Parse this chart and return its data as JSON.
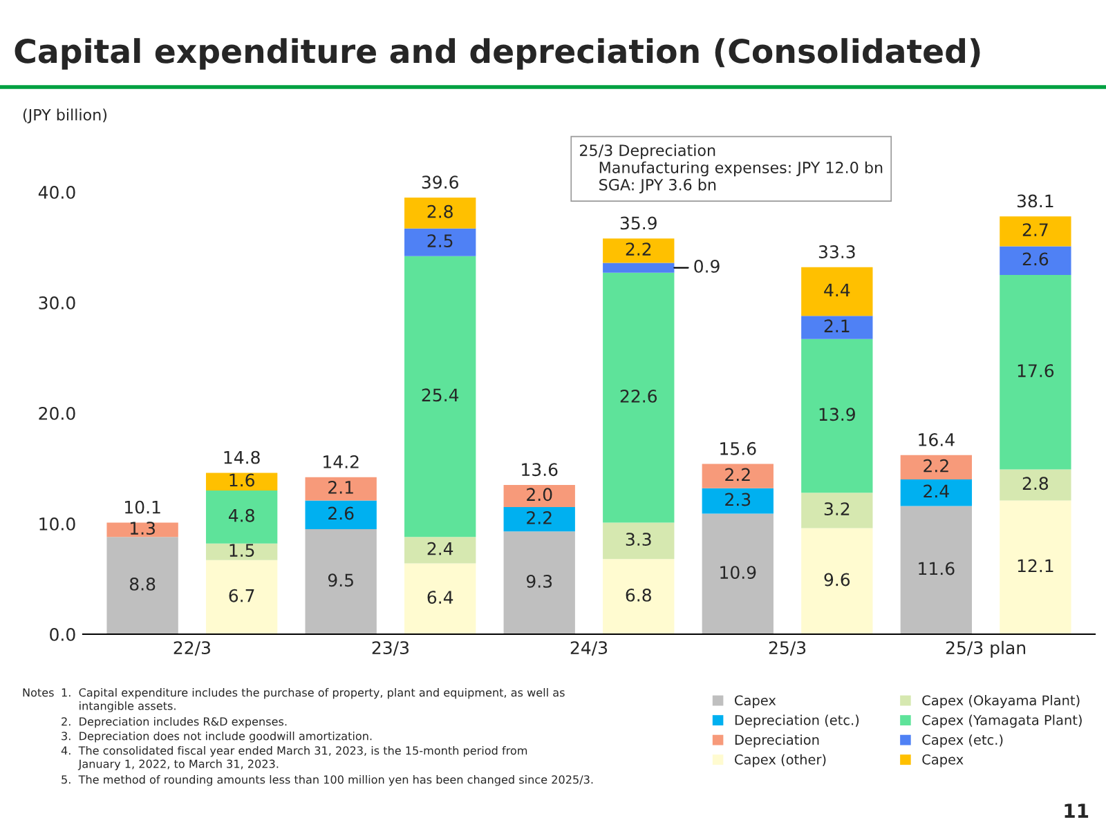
{
  "chart_data": {
    "type": "bar",
    "stacked": true,
    "title": "Capital expenditure and depreciation (Consolidated)",
    "ylabel": "(JPY billion)",
    "categories": [
      "22/3",
      null,
      "23/3",
      null,
      "24/3",
      null,
      "25/3",
      null,
      "25/3 plan",
      null
    ],
    "ylim": [
      0,
      45
    ],
    "yticks": [
      {
        "value": 0,
        "label": "0.0"
      },
      {
        "value": 10,
        "label": "10.0"
      },
      {
        "value": 20,
        "label": "20.0"
      },
      {
        "value": 30,
        "label": "30.0"
      },
      {
        "value": 40,
        "label": "40.0"
      }
    ],
    "grid": false,
    "legend": "bottom right",
    "series": [
      {
        "name": "Capex",
        "color": "#bfbfbf",
        "values": [
          8.8,
          null,
          9.5,
          null,
          9.3,
          null,
          10.9,
          null,
          11.6,
          null
        ],
        "value_labels": [
          "8.8",
          null,
          "9.5",
          null,
          "9.3",
          null,
          "10.9",
          null,
          "11.6",
          null
        ]
      },
      {
        "name": "Depreciation (etc.)",
        "color": "#00b0f0",
        "values": [
          null,
          null,
          2.6,
          null,
          2.2,
          null,
          2.3,
          null,
          2.4,
          null
        ],
        "value_labels": [
          null,
          null,
          "2.6",
          null,
          "2.2",
          null,
          "2.3",
          null,
          "2.4",
          null
        ]
      },
      {
        "name": "Depreciation",
        "color": "#f79a7a",
        "values": [
          1.3,
          null,
          2.1,
          null,
          2.0,
          null,
          2.2,
          null,
          2.2,
          null
        ],
        "value_labels": [
          "1.3",
          null,
          "2.1",
          null,
          "2.0",
          null,
          "2.2",
          null,
          "2.2",
          null
        ]
      },
      {
        "name": "Capex (other)",
        "color": "#fffbd0",
        "values": [
          null,
          6.7,
          null,
          6.4,
          null,
          6.8,
          null,
          9.6,
          null,
          12.1
        ],
        "value_labels": [
          null,
          "6.7",
          null,
          "6.4",
          null,
          "6.8",
          null,
          "9.6",
          null,
          "12.1"
        ]
      },
      {
        "name": "Capex (Okayama Plant)",
        "color": "#d6e8b0",
        "values": [
          null,
          1.5,
          null,
          2.4,
          null,
          3.3,
          null,
          3.2,
          null,
          2.8
        ],
        "value_labels": [
          null,
          "1.5",
          null,
          "2.4",
          null,
          "3.3",
          null,
          "3.2",
          null,
          "2.8"
        ]
      },
      {
        "name": "Capex (Yamagata Plant)",
        "color": "#5ee39a",
        "values": [
          null,
          4.8,
          null,
          25.4,
          null,
          22.6,
          null,
          13.9,
          null,
          17.6
        ],
        "value_labels": [
          null,
          "4.8",
          null,
          "25.4",
          null,
          "22.6",
          null,
          "13.9",
          null,
          "17.6"
        ]
      },
      {
        "name": "Capex (etc.)",
        "color": "#4f81f5",
        "values": [
          null,
          null,
          null,
          2.5,
          null,
          0.9,
          null,
          2.1,
          null,
          2.6
        ],
        "value_labels": [
          null,
          null,
          null,
          "2.5",
          null,
          "0.9",
          null,
          "2.1",
          null,
          "2.6"
        ]
      },
      {
        "name": "Capex",
        "color": "#ffc000",
        "values": [
          null,
          1.6,
          null,
          2.8,
          null,
          2.2,
          null,
          4.4,
          null,
          2.7
        ],
        "value_labels": [
          null,
          "1.6",
          null,
          "2.8",
          null,
          "2.2",
          null,
          "4.4",
          null,
          "2.7"
        ]
      }
    ],
    "totals": [
      "10.1",
      "14.8",
      "14.2",
      "39.6",
      "13.6",
      "35.9",
      "15.6",
      "33.3",
      "16.4",
      "38.1"
    ],
    "annotations": [
      "25/3 Depreciation\n    Manufacturing expenses: JPY 12.0 bn\n    SGA: JPY 3.6 bn",
      "Notes",
      "1.  Capital expenditure includes the purchase of property, plant and equipment, as well as\n     intangible assets.",
      "2.  Depreciation includes R&D expenses.",
      "3.  Depreciation does not include goodwill amortization.",
      "4.  The consolidated fiscal year ended March 31, 2023, is the 15-month period from\n     January 1, 2022, to March 31, 2023.",
      "5.  The method of rounding amounts less than 100 million yen has been changed since 2025/3.",
      "11"
    ]
  }
}
